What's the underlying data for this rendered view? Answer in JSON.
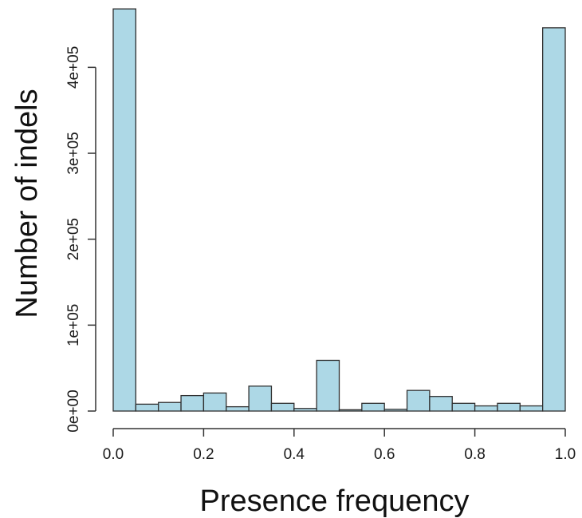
{
  "chart_data": {
    "type": "bar",
    "bin_edges": [
      0.0,
      0.05,
      0.1,
      0.15,
      0.2,
      0.25,
      0.3,
      0.35,
      0.4,
      0.45,
      0.5,
      0.55,
      0.6,
      0.65,
      0.7,
      0.75,
      0.8,
      0.85,
      0.9,
      0.95,
      1.0
    ],
    "values": [
      468000,
      8000,
      10000,
      18000,
      21000,
      5000,
      29000,
      9000,
      3000,
      59000,
      1500,
      9000,
      2000,
      24000,
      17000,
      9000,
      6000,
      9000,
      6000,
      446000
    ],
    "title": "",
    "xlabel": "Presence frequency",
    "ylabel": "Number of indels",
    "xlim": [
      0.0,
      1.0
    ],
    "ylim": [
      0,
      470000
    ],
    "x_ticks": [
      0.0,
      0.2,
      0.4,
      0.6,
      0.8,
      1.0
    ],
    "x_tick_labels": [
      "0.0",
      "0.2",
      "0.4",
      "0.6",
      "0.8",
      "1.0"
    ],
    "y_ticks": [
      0,
      100000,
      200000,
      300000,
      400000
    ],
    "y_tick_labels": [
      "0e+00",
      "1e+05",
      "2e+05",
      "3e+05",
      "4e+05"
    ],
    "bar_color": "#add8e6",
    "grid": false,
    "legend": "none"
  }
}
